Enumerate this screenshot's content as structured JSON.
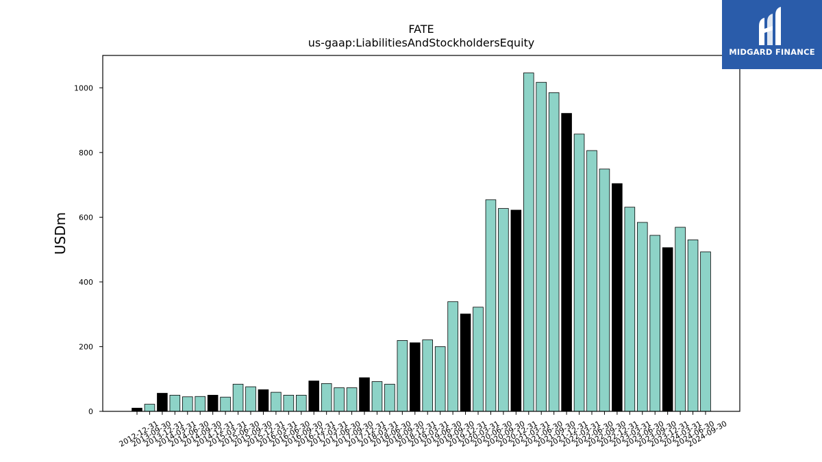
{
  "logo": {
    "text": "MIDGARD FINANCE",
    "background": "#2a5caa"
  },
  "colors": {
    "normal": "#8dd3c7",
    "highlight": "#000000",
    "edge": "#000000"
  },
  "chart_data": {
    "type": "bar",
    "title": "FATE",
    "subtitle": "us-gaap:LiabilitiesAndStockholdersEquity",
    "xlabel": "",
    "ylabel": "USDm",
    "ylim": [
      0,
      1100
    ],
    "yticks": [
      0,
      200,
      400,
      600,
      800,
      1000
    ],
    "grid": false,
    "categories": [
      "2012-12-31",
      "2013-09-30",
      "2013-12-31",
      "2014-03-31",
      "2014-06-30",
      "2014-09-30",
      "2014-12-31",
      "2015-03-31",
      "2015-06-30",
      "2015-09-30",
      "2015-12-31",
      "2016-03-31",
      "2016-06-30",
      "2016-09-30",
      "2016-12-31",
      "2017-03-31",
      "2017-06-30",
      "2017-09-30",
      "2017-12-31",
      "2018-03-31",
      "2018-06-30",
      "2018-09-30",
      "2018-12-31",
      "2019-03-31",
      "2019-06-30",
      "2019-09-30",
      "2019-12-31",
      "2020-03-31",
      "2020-06-30",
      "2020-09-30",
      "2020-12-31",
      "2021-03-31",
      "2021-06-30",
      "2021-09-30",
      "2021-12-31",
      "2022-03-31",
      "2022-06-30",
      "2022-09-30",
      "2022-12-31",
      "2023-03-31",
      "2023-06-30",
      "2023-09-30",
      "2023-12-31",
      "2024-03-31",
      "2024-06-30",
      "2024-09-30"
    ],
    "values": [
      10,
      22,
      56,
      50,
      45,
      46,
      50,
      44,
      84,
      76,
      67,
      59,
      50,
      50,
      94,
      86,
      73,
      73,
      104,
      92,
      84,
      219,
      212,
      221,
      200,
      339,
      301,
      322,
      654,
      627,
      622,
      1046,
      1017,
      985,
      921,
      857,
      806,
      749,
      704,
      631,
      584,
      544,
      506,
      569,
      530,
      493
    ],
    "highlight": [
      true,
      false,
      true,
      false,
      false,
      false,
      true,
      false,
      false,
      false,
      true,
      false,
      false,
      false,
      true,
      false,
      false,
      false,
      true,
      false,
      false,
      false,
      true,
      false,
      false,
      false,
      true,
      false,
      false,
      false,
      true,
      false,
      false,
      false,
      true,
      false,
      false,
      false,
      true,
      false,
      false,
      false,
      true,
      false,
      false,
      false
    ]
  }
}
